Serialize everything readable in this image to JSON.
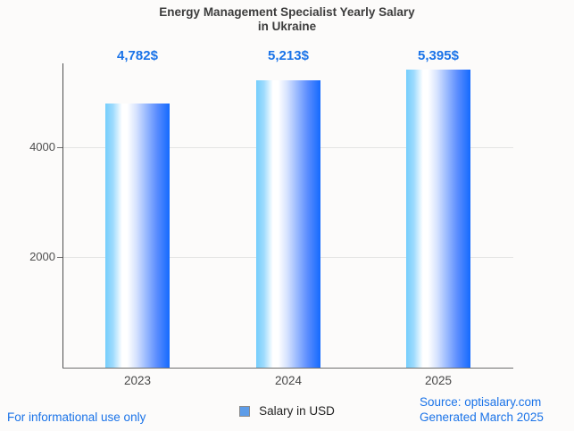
{
  "page": {
    "background_color": "#fcfbfa"
  },
  "chart_data": {
    "type": "bar",
    "title": "Energy Management Specialist Yearly Salary in Ukraine",
    "title_lines": [
      "Energy Management Specialist Yearly Salary",
      "in Ukraine"
    ],
    "categories": [
      "2023",
      "2024",
      "2025"
    ],
    "series": [
      {
        "name": "Salary in USD",
        "values": [
          4782,
          5213,
          5395
        ]
      }
    ],
    "value_labels": [
      "4,782$",
      "5,213$",
      "5,395$"
    ],
    "xlabel": "",
    "ylabel": "",
    "ylim": [
      0,
      5500
    ],
    "yticks": [
      2000,
      4000
    ],
    "ytick_labels": [
      "2000",
      "4000"
    ],
    "grid": true,
    "legend_position": "bottom"
  },
  "legend": {
    "label": "Salary in USD",
    "swatch_color": "#5d9ce8"
  },
  "footer": {
    "disclaimer": "For informational use only",
    "source": "Source: optisalary.com",
    "generated": "Generated March 2025"
  },
  "colors": {
    "accent_blue": "#1a73e8",
    "title_color": "#3c3c3c",
    "axis_line_color": "#4d4d4d",
    "gridline_color": "#e4e4e4",
    "bar_gradient_left": "#74cdfc",
    "bar_gradient_middle": "#ffffff",
    "bar_gradient_right": "#146afe"
  }
}
